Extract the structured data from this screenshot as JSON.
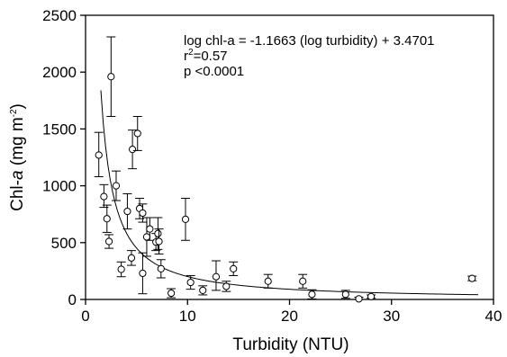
{
  "chart_data": {
    "type": "scatter",
    "title": "",
    "xlabel": "Turbidity (NTU)",
    "ylabel": {
      "prefix": "Chl-",
      "italic": "a",
      "unit_open": " (mg m",
      "unit_sup": "-2",
      "unit_close": ")"
    },
    "xlim": [
      0,
      40
    ],
    "ylim": [
      0,
      2500
    ],
    "xticks": [
      0,
      10,
      20,
      30,
      40
    ],
    "yticks": [
      0,
      500,
      1000,
      1500,
      2000,
      2500
    ],
    "grid": false,
    "marker": "open-circle",
    "points": [
      {
        "x": 1.3,
        "y": 1270,
        "err_low": 1080,
        "err_high": 1470
      },
      {
        "x": 1.8,
        "y": 905,
        "err_low": 810,
        "err_high": 1010
      },
      {
        "x": 2.1,
        "y": 710,
        "err_low": 590,
        "err_high": 830
      },
      {
        "x": 2.3,
        "y": 510,
        "err_low": 450,
        "err_high": 570
      },
      {
        "x": 2.5,
        "y": 1960,
        "err_low": 1610,
        "err_high": 2310
      },
      {
        "x": 3.0,
        "y": 1000,
        "err_low": 870,
        "err_high": 1130
      },
      {
        "x": 3.5,
        "y": 265,
        "err_low": 200,
        "err_high": 330
      },
      {
        "x": 4.1,
        "y": 775,
        "err_low": 620,
        "err_high": 930
      },
      {
        "x": 4.6,
        "y": 1320,
        "err_low": 1150,
        "err_high": 1490
      },
      {
        "x": 4.5,
        "y": 365,
        "err_low": 300,
        "err_high": 430
      },
      {
        "x": 5.1,
        "y": 1460,
        "err_low": 1310,
        "err_high": 1610
      },
      {
        "x": 5.3,
        "y": 800,
        "err_low": 710,
        "err_high": 890
      },
      {
        "x": 5.6,
        "y": 760,
        "err_low": 680,
        "err_high": 840
      },
      {
        "x": 5.6,
        "y": 230,
        "err_low": 50,
        "err_high": 410
      },
      {
        "x": 6.0,
        "y": 550,
        "err_low": 380,
        "err_high": 720
      },
      {
        "x": 6.3,
        "y": 620,
        "err_low": 520,
        "err_high": 720
      },
      {
        "x": 6.9,
        "y": 505,
        "err_low": 430,
        "err_high": 580
      },
      {
        "x": 7.1,
        "y": 580,
        "err_low": 440,
        "err_high": 720
      },
      {
        "x": 7.2,
        "y": 510,
        "err_low": 400,
        "err_high": 620
      },
      {
        "x": 7.4,
        "y": 270,
        "err_low": 190,
        "err_high": 350
      },
      {
        "x": 8.4,
        "y": 55,
        "err_low": 15,
        "err_high": 95
      },
      {
        "x": 9.8,
        "y": 705,
        "err_low": 520,
        "err_high": 890
      },
      {
        "x": 10.3,
        "y": 150,
        "err_low": 90,
        "err_high": 210
      },
      {
        "x": 11.5,
        "y": 80,
        "err_low": 40,
        "err_high": 120
      },
      {
        "x": 12.8,
        "y": 200,
        "err_low": 80,
        "err_high": 340
      },
      {
        "x": 13.8,
        "y": 115,
        "err_low": 70,
        "err_high": 160
      },
      {
        "x": 14.5,
        "y": 270,
        "err_low": 210,
        "err_high": 330
      },
      {
        "x": 17.9,
        "y": 160,
        "err_low": 100,
        "err_high": 220
      },
      {
        "x": 21.3,
        "y": 160,
        "err_low": 100,
        "err_high": 220
      },
      {
        "x": 22.2,
        "y": 45,
        "err_low": 5,
        "err_high": 85
      },
      {
        "x": 25.5,
        "y": 45,
        "err_low": 10,
        "err_high": 80
      },
      {
        "x": 26.8,
        "y": 5,
        "err_low": 0,
        "err_high": 20
      },
      {
        "x": 28.0,
        "y": 25,
        "err_low": 10,
        "err_high": 40
      },
      {
        "x": 37.9,
        "y": 185,
        "err_low": 165,
        "err_high": 205
      }
    ],
    "fit": {
      "equation": "log chl-a = -1.1663 (log turbidity) + 3.4701",
      "slope": -1.1663,
      "intercept": 3.4701,
      "x_from": 1.5,
      "x_to": 38.5
    },
    "annotations": {
      "equation": "log chl-a = -1.1663 (log turbidity) + 3.4701",
      "r2": {
        "base": "r",
        "sup": "2",
        "rest": "=0.57"
      },
      "p": "p <0.0001"
    }
  }
}
